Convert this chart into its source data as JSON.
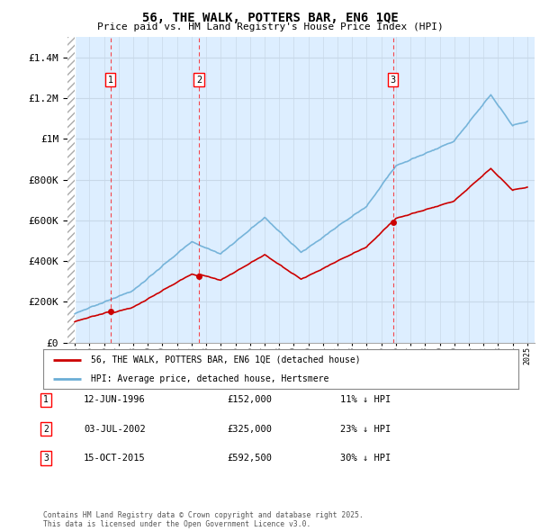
{
  "title": "56, THE WALK, POTTERS BAR, EN6 1QE",
  "subtitle": "Price paid vs. HM Land Registry's House Price Index (HPI)",
  "legend_line1": "56, THE WALK, POTTERS BAR, EN6 1QE (detached house)",
  "legend_line2": "HPI: Average price, detached house, Hertsmere",
  "transactions": [
    {
      "num": 1,
      "date": "12-JUN-1996",
      "price": 152000,
      "pct": "11%",
      "direction": "↓",
      "year": 1996.44
    },
    {
      "num": 2,
      "date": "03-JUL-2002",
      "price": 325000,
      "pct": "23%",
      "direction": "↓",
      "year": 2002.5
    },
    {
      "num": 3,
      "date": "15-OCT-2015",
      "price": 592500,
      "pct": "30%",
      "direction": "↓",
      "year": 2015.79
    }
  ],
  "footer": "Contains HM Land Registry data © Crown copyright and database right 2025.\nThis data is licensed under the Open Government Licence v3.0.",
  "hpi_color": "#6baed6",
  "price_color": "#cc0000",
  "marker_color": "#cc0000",
  "grid_color": "#c8d8e8",
  "bg_color": "#ddeeff",
  "ylim": [
    0,
    1500000
  ],
  "xlim_start": 1993.5,
  "xlim_end": 2025.5
}
